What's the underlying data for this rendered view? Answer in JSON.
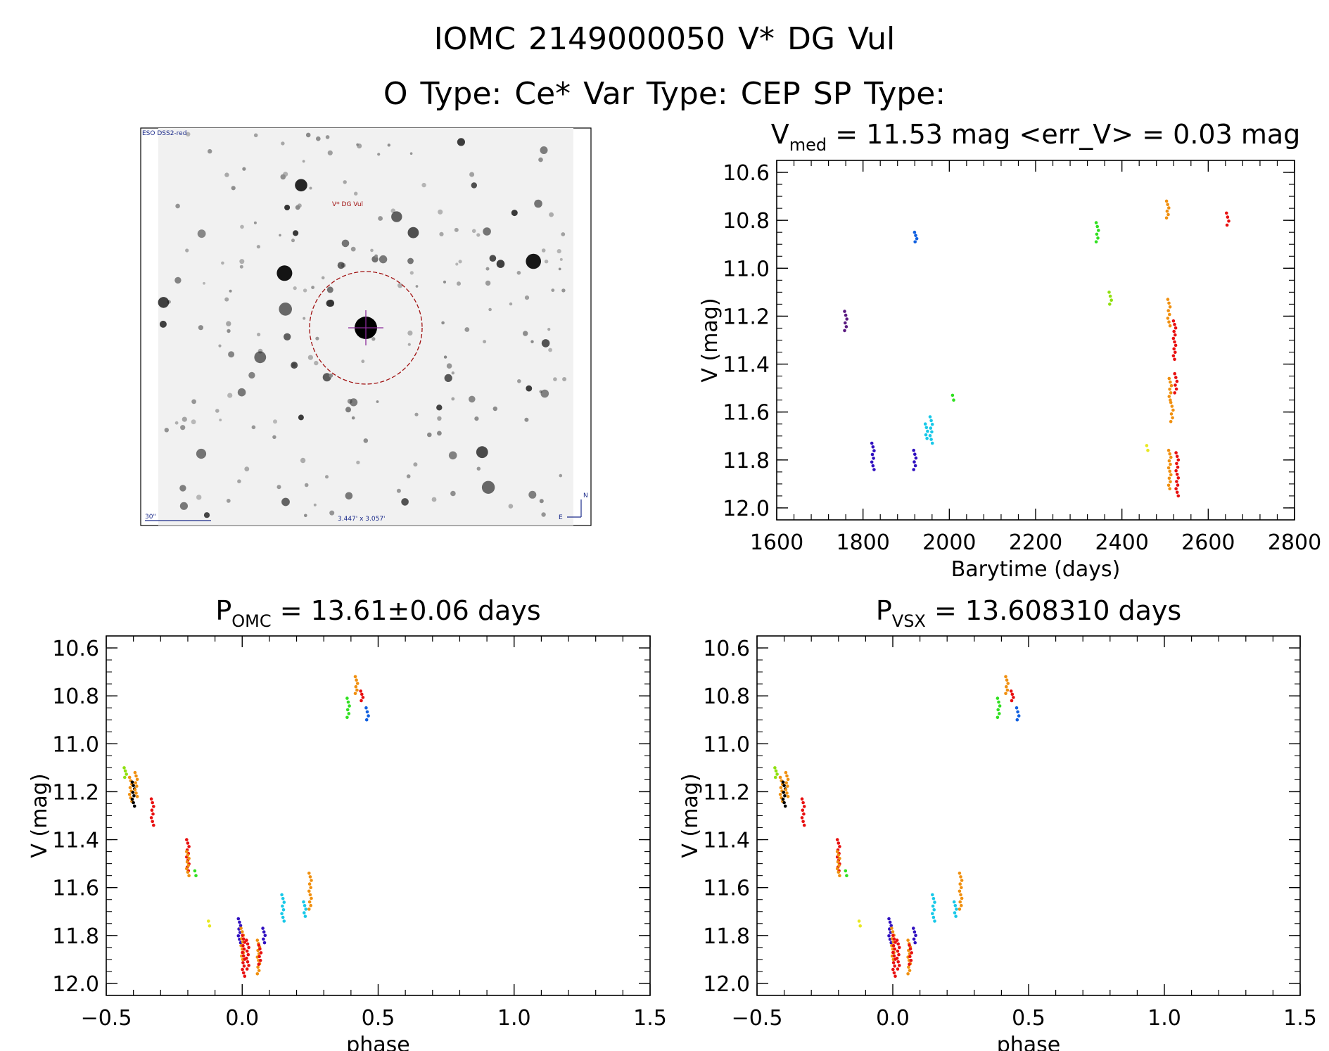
{
  "header": {
    "line1": "IOMC 2149000050   V* DG Vul",
    "line2": "O Type: Ce*  Var Type: CEP  SP Type:"
  },
  "sky_image": {
    "survey_label": "ESO DSS2-red",
    "target_label": "V* DG Vul",
    "scale_label": "30\"",
    "fov_label": "3.447' x 3.057'",
    "compass_n": "N",
    "compass_e": "E"
  },
  "colors": {
    "purple": "#5a1a80",
    "indigo": "#3010c0",
    "blue": "#1060e0",
    "cyan": "#18c8e8",
    "green": "#30e020",
    "lime": "#90e010",
    "yellow": "#e8e820",
    "orange": "#f09010",
    "red": "#e81010",
    "black": "#000000"
  },
  "chart_data": [
    {
      "id": "lightcurve",
      "type": "scatter",
      "title_main": "V",
      "title_sub": "med",
      "title_rest": " = 11.53 mag <err_V> = 0.03 mag",
      "xlabel": "Barytime (days)",
      "ylabel": "V (mag)",
      "xlim": [
        1600,
        2800
      ],
      "ylim": [
        12.05,
        10.55
      ],
      "xticks": [
        "1600",
        "1800",
        "2000",
        "2200",
        "2400",
        "2600",
        "2800"
      ],
      "yticks": [
        "10.6",
        "10.8",
        "11.0",
        "11.2",
        "11.4",
        "11.6",
        "11.8",
        "12.0"
      ],
      "clusters": [
        {
          "x": 1760,
          "y": [
            11.18,
            11.26
          ],
          "color": "purple"
        },
        {
          "x": 1823,
          "y": [
            11.73,
            11.84
          ],
          "color": "indigo"
        },
        {
          "x": 1920,
          "y": [
            11.76,
            11.84
          ],
          "color": "indigo"
        },
        {
          "x": 1922,
          "y": [
            10.85,
            10.89
          ],
          "color": "blue"
        },
        {
          "x": 1947,
          "y": [
            11.65,
            11.71
          ],
          "color": "cyan"
        },
        {
          "x": 1958,
          "y": [
            11.62,
            11.73
          ],
          "color": "cyan"
        },
        {
          "x": 2010,
          "y": [
            11.53,
            11.55
          ],
          "color": "green"
        },
        {
          "x": 2343,
          "y": [
            10.81,
            10.89
          ],
          "color": "green"
        },
        {
          "x": 2373,
          "y": [
            11.1,
            11.15
          ],
          "color": "lime"
        },
        {
          "x": 2460,
          "y": [
            11.74,
            11.76
          ],
          "color": "yellow"
        },
        {
          "x": 2506,
          "y": [
            10.72,
            10.79
          ],
          "color": "orange"
        },
        {
          "x": 2509,
          "y": [
            11.13,
            11.24
          ],
          "color": "orange"
        },
        {
          "x": 2512,
          "y": [
            11.46,
            11.55
          ],
          "color": "orange"
        },
        {
          "x": 2516,
          "y": [
            11.56,
            11.64
          ],
          "color": "orange"
        },
        {
          "x": 2511,
          "y": [
            11.76,
            11.92
          ],
          "color": "orange"
        },
        {
          "x": 2522,
          "y": [
            11.22,
            11.38
          ],
          "color": "red"
        },
        {
          "x": 2525,
          "y": [
            11.44,
            11.52
          ],
          "color": "red"
        },
        {
          "x": 2528,
          "y": [
            11.77,
            11.95
          ],
          "color": "red"
        },
        {
          "x": 2645,
          "y": [
            10.77,
            10.82
          ],
          "color": "red"
        }
      ]
    },
    {
      "id": "phase_omc",
      "type": "scatter",
      "title_main": "P",
      "title_sub": "OMC",
      "title_rest": " = 13.61±0.06 days",
      "xlabel": "phase",
      "ylabel": "V (mag)",
      "xlim": [
        -0.5,
        1.5
      ],
      "ylim": [
        12.05,
        10.55
      ],
      "xticks": [
        "−0.5",
        "0.0",
        "0.5",
        "1.0",
        "1.5"
      ],
      "yticks": [
        "10.6",
        "10.8",
        "11.0",
        "11.2",
        "11.4",
        "11.6",
        "11.8",
        "12.0"
      ],
      "clusters": [
        {
          "x": -0.43,
          "y": [
            11.1,
            11.14
          ],
          "color": "lime"
        },
        {
          "x": -0.41,
          "y": [
            11.14,
            11.24
          ],
          "color": "orange"
        },
        {
          "x": -0.4,
          "y": [
            11.16,
            11.26
          ],
          "color": "black"
        },
        {
          "x": -0.39,
          "y": [
            11.12,
            11.22
          ],
          "color": "orange"
        },
        {
          "x": -0.33,
          "y": [
            11.23,
            11.34
          ],
          "color": "red"
        },
        {
          "x": -0.2,
          "y": [
            11.4,
            11.53
          ],
          "color": "red"
        },
        {
          "x": -0.2,
          "y": [
            11.45,
            11.55
          ],
          "color": "orange"
        },
        {
          "x": -0.17,
          "y": [
            11.53,
            11.55
          ],
          "color": "green"
        },
        {
          "x": -0.12,
          "y": [
            11.74,
            11.76
          ],
          "color": "yellow"
        },
        {
          "x": -0.01,
          "y": [
            11.73,
            11.83
          ],
          "color": "indigo"
        },
        {
          "x": 0.0,
          "y": [
            11.77,
            11.9
          ],
          "color": "orange"
        },
        {
          "x": 0.005,
          "y": [
            11.8,
            11.97
          ],
          "color": "red"
        },
        {
          "x": 0.02,
          "y": [
            11.82,
            11.94
          ],
          "color": "red"
        },
        {
          "x": 0.06,
          "y": [
            11.82,
            11.96
          ],
          "color": "orange"
        },
        {
          "x": 0.065,
          "y": [
            11.84,
            11.92
          ],
          "color": "red"
        },
        {
          "x": 0.08,
          "y": [
            11.77,
            11.83
          ],
          "color": "indigo"
        },
        {
          "x": 0.15,
          "y": [
            11.63,
            11.74
          ],
          "color": "cyan"
        },
        {
          "x": 0.23,
          "y": [
            11.66,
            11.72
          ],
          "color": "cyan"
        },
        {
          "x": 0.25,
          "y": [
            11.54,
            11.69
          ],
          "color": "orange"
        },
        {
          "x": 0.39,
          "y": [
            10.81,
            10.89
          ],
          "color": "green"
        },
        {
          "x": 0.42,
          "y": [
            10.72,
            10.79
          ],
          "color": "orange"
        },
        {
          "x": 0.44,
          "y": [
            10.78,
            10.82
          ],
          "color": "red"
        },
        {
          "x": 0.46,
          "y": [
            10.85,
            10.9
          ],
          "color": "blue"
        }
      ]
    },
    {
      "id": "phase_vsx",
      "type": "scatter",
      "title_main": "P",
      "title_sub": "VSX",
      "title_rest": " = 13.608310 days",
      "xlabel": "phase",
      "ylabel": "V (mag)",
      "xlim": [
        -0.5,
        1.5
      ],
      "ylim": [
        12.05,
        10.55
      ],
      "xticks": [
        "−0.5",
        "0.0",
        "0.5",
        "1.0",
        "1.5"
      ],
      "yticks": [
        "10.6",
        "10.8",
        "11.0",
        "11.2",
        "11.4",
        "11.6",
        "11.8",
        "12.0"
      ],
      "clusters": [
        {
          "x": -0.43,
          "y": [
            11.1,
            11.14
          ],
          "color": "lime"
        },
        {
          "x": -0.41,
          "y": [
            11.14,
            11.24
          ],
          "color": "orange"
        },
        {
          "x": -0.4,
          "y": [
            11.16,
            11.26
          ],
          "color": "black"
        },
        {
          "x": -0.39,
          "y": [
            11.12,
            11.22
          ],
          "color": "orange"
        },
        {
          "x": -0.33,
          "y": [
            11.23,
            11.34
          ],
          "color": "red"
        },
        {
          "x": -0.2,
          "y": [
            11.4,
            11.53
          ],
          "color": "red"
        },
        {
          "x": -0.2,
          "y": [
            11.45,
            11.55
          ],
          "color": "orange"
        },
        {
          "x": -0.17,
          "y": [
            11.53,
            11.55
          ],
          "color": "green"
        },
        {
          "x": -0.12,
          "y": [
            11.74,
            11.76
          ],
          "color": "yellow"
        },
        {
          "x": -0.01,
          "y": [
            11.73,
            11.83
          ],
          "color": "indigo"
        },
        {
          "x": 0.0,
          "y": [
            11.77,
            11.9
          ],
          "color": "orange"
        },
        {
          "x": 0.005,
          "y": [
            11.8,
            11.97
          ],
          "color": "red"
        },
        {
          "x": 0.02,
          "y": [
            11.82,
            11.94
          ],
          "color": "red"
        },
        {
          "x": 0.06,
          "y": [
            11.82,
            11.96
          ],
          "color": "orange"
        },
        {
          "x": 0.065,
          "y": [
            11.84,
            11.92
          ],
          "color": "red"
        },
        {
          "x": 0.08,
          "y": [
            11.77,
            11.83
          ],
          "color": "indigo"
        },
        {
          "x": 0.15,
          "y": [
            11.63,
            11.74
          ],
          "color": "cyan"
        },
        {
          "x": 0.23,
          "y": [
            11.66,
            11.72
          ],
          "color": "cyan"
        },
        {
          "x": 0.25,
          "y": [
            11.54,
            11.69
          ],
          "color": "orange"
        },
        {
          "x": 0.39,
          "y": [
            10.81,
            10.89
          ],
          "color": "green"
        },
        {
          "x": 0.42,
          "y": [
            10.72,
            10.79
          ],
          "color": "orange"
        },
        {
          "x": 0.44,
          "y": [
            10.78,
            10.82
          ],
          "color": "red"
        },
        {
          "x": 0.46,
          "y": [
            10.85,
            10.9
          ],
          "color": "blue"
        }
      ]
    }
  ]
}
